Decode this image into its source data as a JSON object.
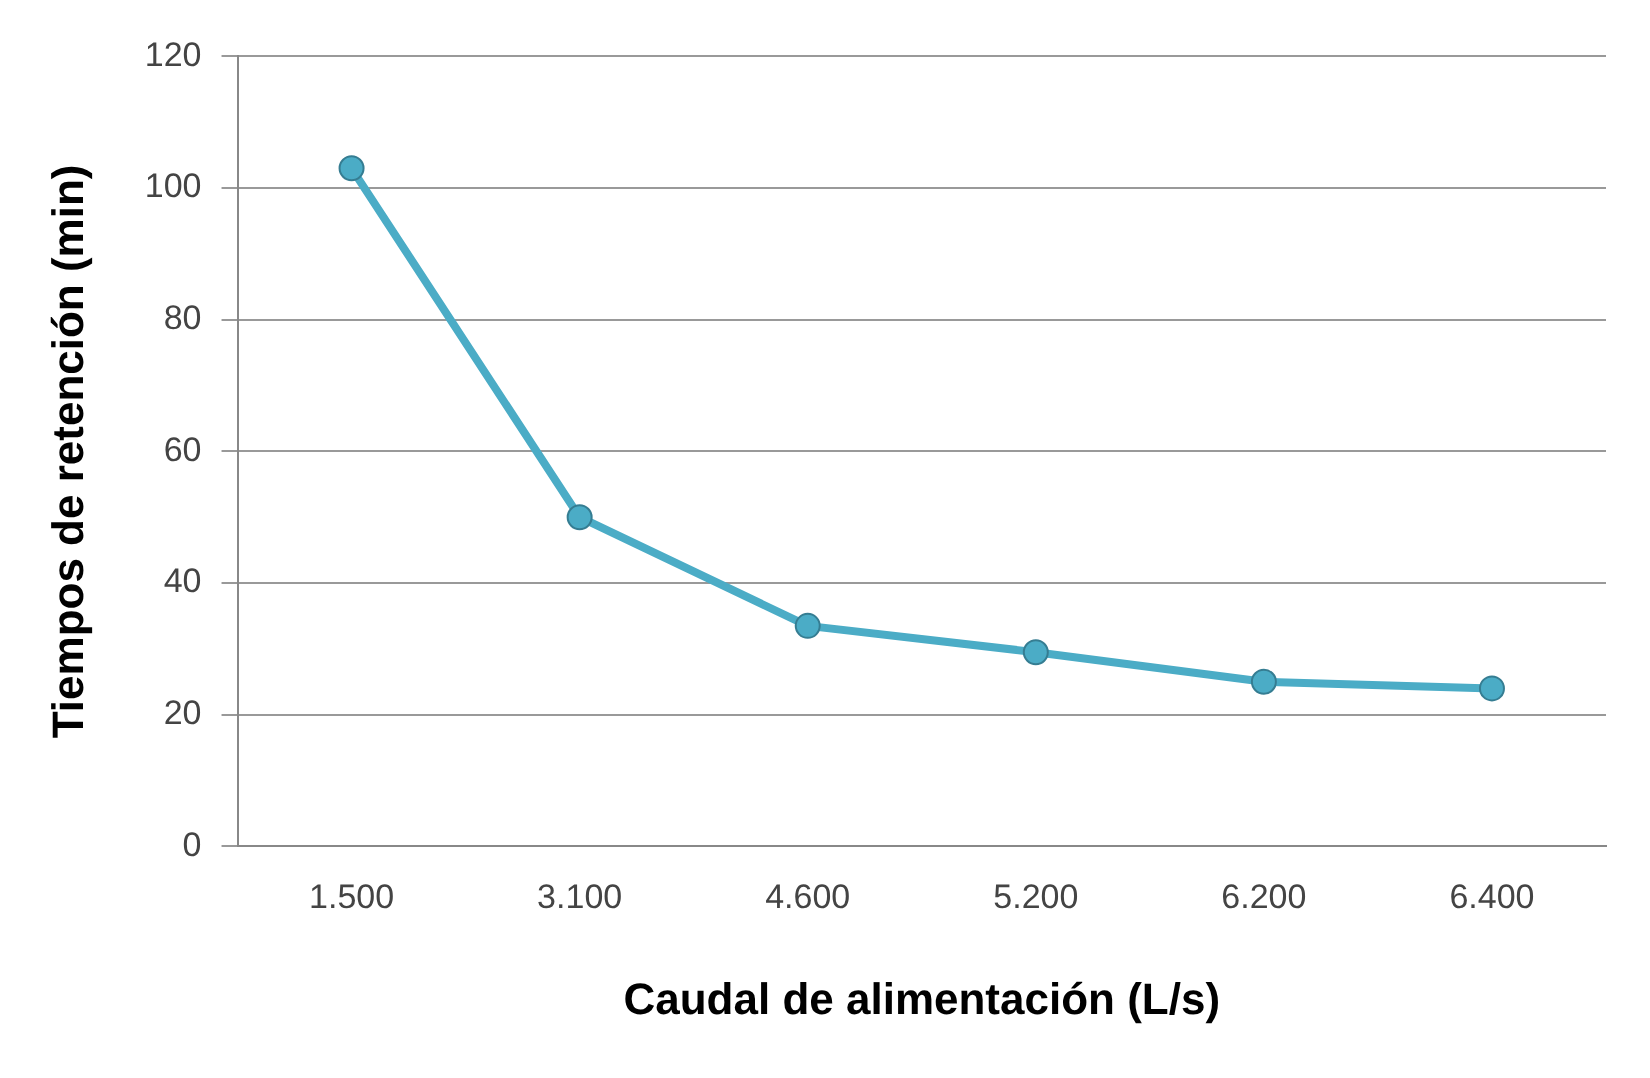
{
  "chart_data": {
    "type": "line",
    "xlabel": "Caudal de alimentación (L/s)",
    "ylabel": "Tiempos de retención (min)",
    "categories": [
      "1.500",
      "3.100",
      "4.600",
      "5.200",
      "6.200",
      "6.400"
    ],
    "series": [
      {
        "color": "#4bacc6",
        "values": [
          103,
          50,
          33.5,
          29.5,
          25,
          24
        ]
      }
    ],
    "ylim": [
      0,
      120
    ],
    "yticks": [
      0,
      20,
      40,
      60,
      80,
      100,
      120
    ],
    "grid": "y",
    "legend": false,
    "marker": "circle",
    "line_style": "solid"
  }
}
